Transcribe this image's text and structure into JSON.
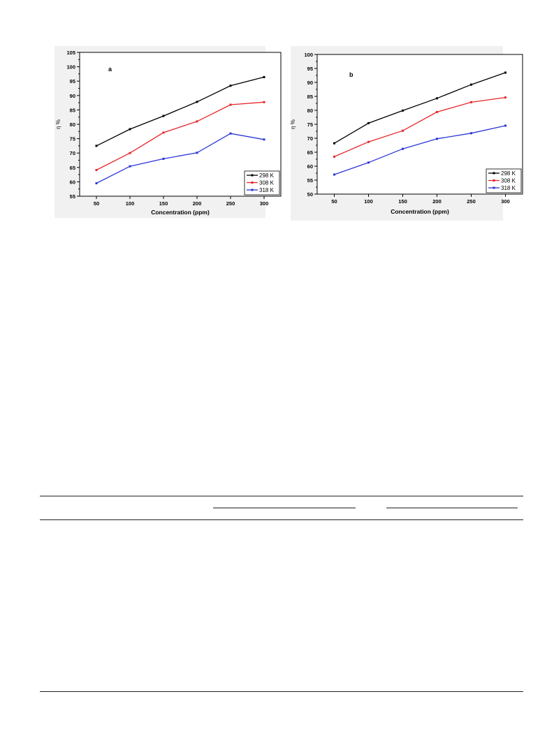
{
  "chart_data": [
    {
      "type": "line",
      "panel_label": "a",
      "xlabel": "Concentration (ppm)",
      "ylabel": "η %",
      "x": [
        50,
        100,
        150,
        200,
        250,
        300
      ],
      "x_ticks": [
        "50",
        "100",
        "150",
        "200",
        "250",
        "300"
      ],
      "ylim": [
        55,
        105
      ],
      "y_ticks": [
        "55",
        "60",
        "65",
        "70",
        "75",
        "80",
        "85",
        "90",
        "95",
        "100",
        "105"
      ],
      "legend_position": "bottom-right",
      "grid": false,
      "series": [
        {
          "name": "298 K",
          "color": "#000000",
          "values": [
            72.5,
            78.3,
            82.9,
            87.8,
            93.4,
            96.4
          ]
        },
        {
          "name": "308 K",
          "color": "#e8262b",
          "values": [
            64.1,
            70.0,
            77.1,
            81.0,
            86.8,
            87.7
          ]
        },
        {
          "name": "318 K",
          "color": "#2a36d6",
          "values": [
            59.5,
            65.4,
            68.0,
            70.1,
            76.8,
            74.7
          ]
        }
      ]
    },
    {
      "type": "line",
      "panel_label": "b",
      "xlabel": "Concentration (ppm)",
      "ylabel": "η %",
      "x": [
        50,
        100,
        150,
        200,
        250,
        300
      ],
      "x_ticks": [
        "50",
        "100",
        "150",
        "200",
        "250",
        "300"
      ],
      "ylim": [
        50,
        100
      ],
      "y_ticks": [
        "50",
        "55",
        "60",
        "65",
        "70",
        "75",
        "80",
        "85",
        "90",
        "95",
        "100"
      ],
      "legend_position": "bottom-right",
      "grid": false,
      "series": [
        {
          "name": "298 K",
          "color": "#000000",
          "values": [
            68.2,
            75.4,
            79.9,
            84.3,
            89.2,
            93.5
          ]
        },
        {
          "name": "308 K",
          "color": "#e8262b",
          "values": [
            63.4,
            68.7,
            72.7,
            79.4,
            82.9,
            84.6
          ]
        },
        {
          "name": "318 K",
          "color": "#2a36d6",
          "values": [
            57.0,
            61.3,
            66.2,
            69.8,
            71.8,
            74.5
          ]
        }
      ]
    }
  ]
}
